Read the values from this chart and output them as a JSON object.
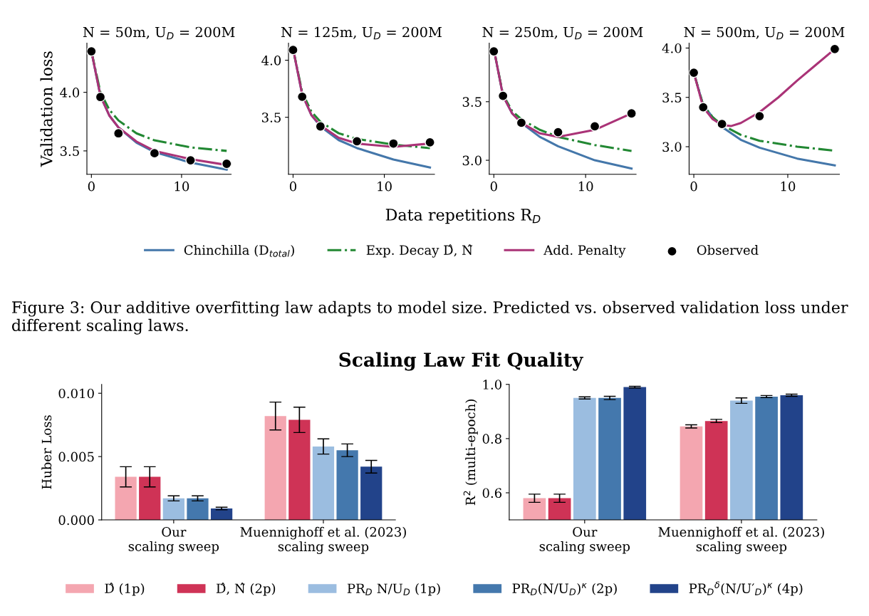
{
  "chart_data": [
    {
      "type": "line",
      "title": "N = 50m, U$_{D}$ = 200M",
      "ylabel": "Validation loss",
      "xlim": [
        -0.5,
        15.5
      ],
      "xticks": [
        0,
        10
      ],
      "ylim": [
        3.3,
        4.42
      ],
      "yticks": [
        {
          "value": 3.5,
          "label": "3.5"
        },
        {
          "value": 4.0,
          "label": "4.0"
        }
      ],
      "legend": "bottom",
      "grid": false,
      "series": [
        {
          "name": "Chinchilla (D$_{total}$)",
          "color": "#4477aa",
          "line_style": "solid",
          "x": [
            0,
            1,
            2,
            3,
            5,
            7,
            11,
            15
          ],
          "values": [
            4.35,
            3.97,
            3.8,
            3.7,
            3.57,
            3.49,
            3.4,
            3.34
          ]
        },
        {
          "name": "Exp. Decay D̂, N̂",
          "color": "#228833",
          "line_style": "dashdot",
          "x": [
            0,
            1,
            2,
            3,
            5,
            7,
            11,
            15
          ],
          "values": [
            4.35,
            4.0,
            3.85,
            3.76,
            3.65,
            3.59,
            3.53,
            3.5
          ]
        },
        {
          "name": "Add. Penalty",
          "color": "#aa3377",
          "line_style": "solid",
          "x": [
            0,
            1,
            2,
            3,
            5,
            7,
            11,
            15
          ],
          "values": [
            4.35,
            3.97,
            3.8,
            3.7,
            3.58,
            3.5,
            3.43,
            3.38
          ]
        },
        {
          "name": "Observed",
          "type": "scatter",
          "marker": "circle",
          "color": "#000000",
          "x": [
            0,
            1,
            3,
            7,
            11,
            15
          ],
          "values": [
            4.35,
            3.96,
            3.65,
            3.48,
            3.42,
            3.39
          ]
        }
      ]
    },
    {
      "type": "line",
      "title": "N = 125m, U$_{D}$ = 200M",
      "xlabel": "Data repetitions R$_{D}$",
      "xlim": [
        -0.5,
        15.5
      ],
      "xticks": [
        0,
        10
      ],
      "ylim": [
        3.0,
        4.15
      ],
      "yticks": [
        {
          "value": 3.5,
          "label": "3.5"
        },
        {
          "value": 4.0,
          "label": "4.0"
        }
      ],
      "grid": false,
      "series": [
        {
          "color": "#4477aa",
          "line_style": "solid",
          "x": [
            0,
            1,
            2,
            3,
            5,
            7,
            11,
            15
          ],
          "values": [
            4.1,
            3.7,
            3.52,
            3.42,
            3.3,
            3.23,
            3.13,
            3.06
          ]
        },
        {
          "color": "#228833",
          "line_style": "dashdot",
          "x": [
            0,
            1,
            2,
            3,
            5,
            7,
            11,
            15
          ],
          "values": [
            4.1,
            3.72,
            3.55,
            3.46,
            3.36,
            3.31,
            3.26,
            3.23
          ]
        },
        {
          "color": "#aa3377",
          "line_style": "solid",
          "x": [
            0,
            1,
            2,
            3,
            5,
            7,
            11,
            15
          ],
          "values": [
            4.1,
            3.7,
            3.52,
            3.43,
            3.32,
            3.27,
            3.24,
            3.27
          ]
        },
        {
          "type": "scatter",
          "marker": "circle",
          "color": "#000000",
          "x": [
            0,
            1,
            3,
            7,
            11,
            15
          ],
          "values": [
            4.09,
            3.68,
            3.42,
            3.29,
            3.27,
            3.28
          ]
        }
      ]
    },
    {
      "type": "line",
      "title": "N = 250m, U$_{D}$ = 200M",
      "xlim": [
        -0.5,
        15.5
      ],
      "xticks": [
        0,
        10
      ],
      "ylim": [
        2.88,
        4.0
      ],
      "yticks": [
        {
          "value": 3.0,
          "label": "3.0"
        },
        {
          "value": 3.5,
          "label": "3.5"
        }
      ],
      "grid": false,
      "series": [
        {
          "color": "#4477aa",
          "line_style": "solid",
          "x": [
            0,
            1,
            2,
            3,
            5,
            7,
            11,
            15
          ],
          "values": [
            3.95,
            3.55,
            3.4,
            3.32,
            3.2,
            3.12,
            3.0,
            2.93
          ]
        },
        {
          "color": "#228833",
          "line_style": "dashdot",
          "x": [
            0,
            1,
            2,
            3,
            5,
            7,
            11,
            15
          ],
          "values": [
            3.95,
            3.56,
            3.42,
            3.35,
            3.26,
            3.2,
            3.13,
            3.08
          ]
        },
        {
          "color": "#aa3377",
          "line_style": "solid",
          "x": [
            0,
            1,
            2,
            3,
            5,
            7,
            11,
            15
          ],
          "values": [
            3.95,
            3.55,
            3.4,
            3.32,
            3.23,
            3.2,
            3.26,
            3.4
          ]
        },
        {
          "type": "scatter",
          "marker": "circle",
          "color": "#000000",
          "x": [
            0,
            1,
            3,
            7,
            11,
            15
          ],
          "values": [
            3.93,
            3.55,
            3.32,
            3.24,
            3.29,
            3.4
          ]
        }
      ]
    },
    {
      "type": "line",
      "title": "N = 500m, U$_{D}$ = 200M",
      "xlim": [
        -0.5,
        15.5
      ],
      "xticks": [
        0,
        10
      ],
      "ylim": [
        2.72,
        4.05
      ],
      "yticks": [
        {
          "value": 3.0,
          "label": "3.0"
        },
        {
          "value": 3.5,
          "label": "3.5"
        },
        {
          "value": 4.0,
          "label": "4.0"
        }
      ],
      "grid": false,
      "annotations": [
        "Figure 3: Our additive overfitting law adapts to model size. Predicted vs. observed validation loss under different scaling laws."
      ],
      "series": [
        {
          "color": "#4477aa",
          "line_style": "solid",
          "x": [
            0,
            1,
            2,
            3,
            5,
            7,
            11,
            15
          ],
          "values": [
            3.75,
            3.42,
            3.3,
            3.2,
            3.07,
            2.99,
            2.88,
            2.81
          ]
        },
        {
          "color": "#228833",
          "line_style": "dashdot",
          "x": [
            0,
            1,
            2,
            3,
            5,
            7,
            11,
            15
          ],
          "values": [
            3.75,
            3.42,
            3.3,
            3.22,
            3.12,
            3.06,
            3.0,
            2.96
          ]
        },
        {
          "color": "#aa3377",
          "line_style": "solid",
          "x": [
            0,
            1,
            2,
            3,
            4,
            5,
            7,
            9,
            11,
            13,
            15
          ],
          "values": [
            3.75,
            3.4,
            3.28,
            3.22,
            3.21,
            3.24,
            3.35,
            3.5,
            3.67,
            3.83,
            3.99
          ]
        },
        {
          "type": "scatter",
          "marker": "circle",
          "color": "#000000",
          "x": [
            0,
            1,
            3,
            7,
            15
          ],
          "values": [
            3.75,
            3.4,
            3.23,
            3.31,
            3.99
          ]
        }
      ]
    },
    {
      "type": "bar",
      "title": "Scaling Law Fit Quality",
      "ylabel": "Huber Loss",
      "categories": [
        "Our\nscaling sweep",
        "Muennighoff et al. (2023)\nscaling sweep"
      ],
      "ylim": [
        0,
        0.0107
      ],
      "yticks": [
        {
          "value": 0,
          "label": "0.000"
        },
        {
          "value": 0.005,
          "label": "0.005"
        },
        {
          "value": 0.01,
          "label": "0.010"
        }
      ],
      "legend": "bottom",
      "grid": false,
      "series": [
        {
          "name": "D̂ (1p)",
          "color": "#f4a6b0",
          "values": [
            0.0034,
            0.0082
          ],
          "errors": [
            0.0008,
            0.0011
          ]
        },
        {
          "name": "D̂, N̂ (2p)",
          "color": "#cf3356",
          "values": [
            0.0034,
            0.0079
          ],
          "errors": [
            0.0008,
            0.001
          ]
        },
        {
          "name": "PR$_{D}$ N/U$_{D}$ (1p)",
          "color": "#9bbde0",
          "values": [
            0.0017,
            0.0058
          ],
          "errors": [
            0.0002,
            0.0006
          ]
        },
        {
          "name": "PR$_{D}$(N/U$_{D}$)$^{κ}$ (2p)",
          "color": "#4478ad",
          "values": [
            0.0017,
            0.0055
          ],
          "errors": [
            0.0002,
            0.0005
          ]
        },
        {
          "name": "PR$_{D}$$^{δ}$(N/U′$_{D}$)$^{κ}$ (4p)",
          "color": "#22438a",
          "values": [
            0.0009,
            0.0042
          ],
          "errors": [
            0.0001,
            0.0005
          ]
        }
      ]
    },
    {
      "type": "bar",
      "ylabel": "R$^{2}$ (multi-epoch)",
      "categories": [
        "Our\nscaling sweep",
        "Muennighoff et al. (2023)\nscaling sweep"
      ],
      "ylim": [
        0.5,
        1.0
      ],
      "yticks": [
        {
          "value": 0.6,
          "label": "0.6"
        },
        {
          "value": 0.8,
          "label": "0.8"
        },
        {
          "value": 1.0,
          "label": "1.0"
        }
      ],
      "grid": false,
      "series": [
        {
          "color": "#f4a6b0",
          "values": [
            0.58,
            0.845
          ],
          "errors": [
            0.015,
            0.006
          ]
        },
        {
          "color": "#cf3356",
          "values": [
            0.58,
            0.865
          ],
          "errors": [
            0.015,
            0.006
          ]
        },
        {
          "color": "#9bbde0",
          "values": [
            0.95,
            0.94
          ],
          "errors": [
            0.004,
            0.01
          ]
        },
        {
          "color": "#4478ad",
          "values": [
            0.95,
            0.955
          ],
          "errors": [
            0.006,
            0.004
          ]
        },
        {
          "color": "#22438a",
          "values": [
            0.99,
            0.96
          ],
          "errors": [
            0.003,
            0.004
          ]
        }
      ]
    }
  ]
}
